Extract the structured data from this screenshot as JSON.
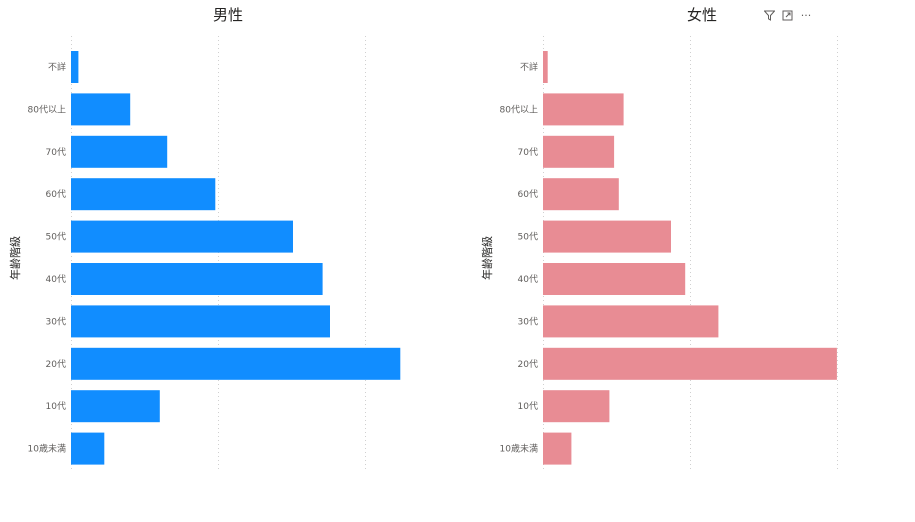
{
  "chart_data": [
    {
      "type": "bar",
      "orientation": "horizontal",
      "title": "男性",
      "ylabel": "年齢階級",
      "xlabel": "",
      "categories": [
        "不詳",
        "80代以上",
        "70代",
        "60代",
        "50代",
        "40代",
        "30代",
        "20代",
        "10代",
        "10歳未満"
      ],
      "values": [
        1,
        8,
        13,
        19.5,
        30,
        34,
        35,
        44.5,
        12,
        4.5
      ],
      "xlim": [
        0,
        60
      ],
      "grid": true,
      "color": "#118DFF"
    },
    {
      "type": "bar",
      "orientation": "horizontal",
      "title": "女性",
      "ylabel": "年齢階級",
      "xlabel": "",
      "categories": [
        "不詳",
        "80代以上",
        "70代",
        "60代",
        "50代",
        "40代",
        "30代",
        "20代",
        "10代",
        "10歳未満"
      ],
      "values": [
        0.5,
        8.5,
        7.5,
        8,
        13.5,
        15,
        18.5,
        31,
        7,
        3
      ],
      "xlim": [
        0,
        33
      ],
      "grid": true,
      "color": "#E88C94"
    }
  ],
  "toolbar": {
    "icons": [
      "filter-icon",
      "focus-mode-icon",
      "more-options-icon"
    ],
    "more_label": "···"
  }
}
